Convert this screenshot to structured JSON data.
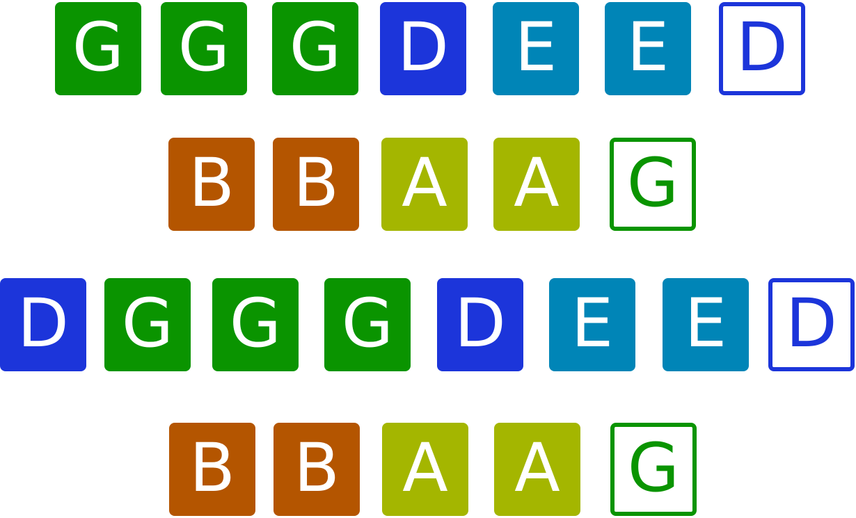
{
  "colors": {
    "G": "#0a9400",
    "D": "#1c35da",
    "E": "#0085b7",
    "B": "#b45500",
    "A": "#a4b600"
  },
  "rows": [
    [
      {
        "letter": "G",
        "style": "filled"
      },
      {
        "letter": "G",
        "style": "filled"
      },
      {
        "letter": "G",
        "style": "filled"
      },
      {
        "letter": "D",
        "style": "filled"
      },
      {
        "letter": "E",
        "style": "filled"
      },
      {
        "letter": "E",
        "style": "filled"
      },
      {
        "letter": "D",
        "style": "outline"
      }
    ],
    [
      {
        "letter": "B",
        "style": "filled"
      },
      {
        "letter": "B",
        "style": "filled"
      },
      {
        "letter": "A",
        "style": "filled"
      },
      {
        "letter": "A",
        "style": "filled"
      },
      {
        "letter": "G",
        "style": "outline"
      }
    ],
    [
      {
        "letter": "D",
        "style": "filled"
      },
      {
        "letter": "G",
        "style": "filled"
      },
      {
        "letter": "G",
        "style": "filled"
      },
      {
        "letter": "G",
        "style": "filled"
      },
      {
        "letter": "D",
        "style": "filled"
      },
      {
        "letter": "E",
        "style": "filled"
      },
      {
        "letter": "E",
        "style": "filled"
      },
      {
        "letter": "D",
        "style": "outline"
      }
    ],
    [
      {
        "letter": "B",
        "style": "filled"
      },
      {
        "letter": "B",
        "style": "filled"
      },
      {
        "letter": "A",
        "style": "filled"
      },
      {
        "letter": "A",
        "style": "filled"
      },
      {
        "letter": "G",
        "style": "outline"
      }
    ]
  ]
}
